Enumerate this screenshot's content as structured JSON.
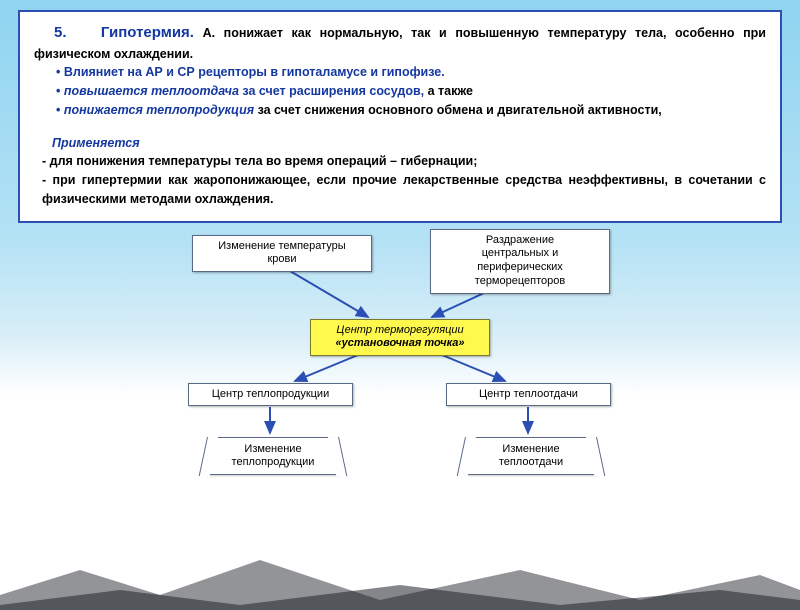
{
  "title_number": "5.",
  "title_word": "Гипотермия.",
  "main_sentence_pre": "А. понижает как нормальную, так и повышенную температуру тела, особенно при физическом охлаждении.",
  "bullets": [
    {
      "text": "Влияниет на АР и СР рецепторы в гипоталамусе и гипофизе."
    },
    {
      "prefix_ital": "повышается теплоотдача",
      "rest": " за счет расширения сосудов,",
      "tail_black": " а также"
    },
    {
      "prefix_ital": "понижается теплопродукция",
      "rest_black": " за счет снижения основного обмена и двигательной активности,"
    }
  ],
  "applied_header": "Применяется",
  "applied_lines": [
    "- для понижения температуры тела во время операций – гибернации;",
    "- при гипертермии как жаропонижающее, если прочие лекарственные средства неэффективны, в сочетании с физическими методами охлаждения."
  ],
  "diagram": {
    "top_left": "Изменение температуры\nкрови",
    "top_right": "Раздражение\nцентральных и\nпериферических\nтерморецепторов",
    "center_line1": "Центр терморегуляции",
    "center_line2": "«установочная точка»",
    "mid_left": "Центр теплопродукции",
    "mid_right": "Центр теплоотдачи",
    "bottom_left": "Изменение\nтеплопродукции",
    "bottom_right": "Изменение\nтеплоотдачи",
    "arrow_color": "#2b4fb5",
    "box_border": "#5a6a85",
    "center_bg": "#fff94d"
  }
}
